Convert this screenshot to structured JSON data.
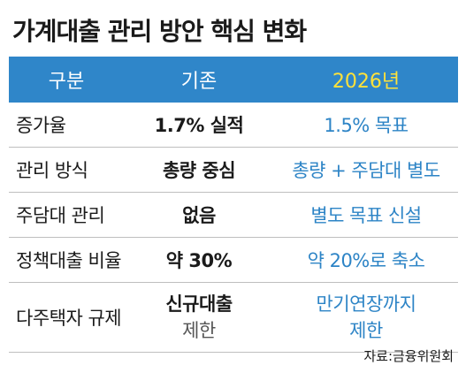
{
  "title": "가계대출 관리 방안 핵심 변화",
  "header": {
    "col1": "구분",
    "col2": "기존",
    "col3": "2026년"
  },
  "rows": [
    {
      "label": "증가율",
      "before": "1.7% 실적",
      "after": "1.5% 목표"
    },
    {
      "label": "관리 방식",
      "before": "총량 중심",
      "after": "총량 + 주담대 별도"
    },
    {
      "label": "주담대 관리",
      "before": "없음",
      "after": "별도 목표 신설"
    },
    {
      "label": "정책대출 비율",
      "before": "약 30%",
      "after": "약 20%로 축소"
    },
    {
      "label": "다주택자 규제",
      "before_line1": "신규대출",
      "before_line2": "제한",
      "after_line1": "만기연장까지",
      "after_line2": "제한"
    }
  ],
  "source": "자료:금융위원회",
  "colors": {
    "header_bg": "#2f86c9",
    "header_highlight": "#ffe23a",
    "accent_text": "#2d84c6"
  }
}
